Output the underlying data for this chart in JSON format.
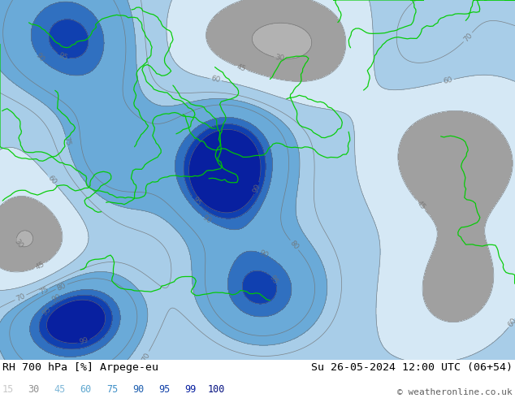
{
  "title_left": "RH 700 hPa [%] Arpege-eu",
  "title_left_parts": [
    "RH 700 hPa [%] Arpege-eu"
  ],
  "title_right": "Su 26-05-2024 12:00 UTC (06+54)",
  "copyright": "© weatheronline.co.uk",
  "colorbar_levels": [
    15,
    30,
    45,
    60,
    75,
    90,
    95,
    99,
    100
  ],
  "label_text_colors": [
    "#c0c0c0",
    "#a0a0a0",
    "#80b0d0",
    "#60a0c8",
    "#4090c0",
    "#2060a0",
    "#1040a0",
    "#082080",
    "#041060"
  ],
  "map_colors": [
    "#c8c8c8",
    "#b0b0b0",
    "#d0e4f0",
    "#a8cce4",
    "#7aaed8",
    "#4080c0",
    "#2050a8",
    "#102090",
    "#081060"
  ],
  "bg_color": "#ffffff",
  "bottom_bar_color": "#ffffff",
  "contour_color": "#707070",
  "border_color": "#00cc00",
  "map_area_color": "#b8d8f0",
  "gray_area_color": "#c0c0c0",
  "figsize": [
    6.34,
    4.9
  ],
  "dpi": 100
}
